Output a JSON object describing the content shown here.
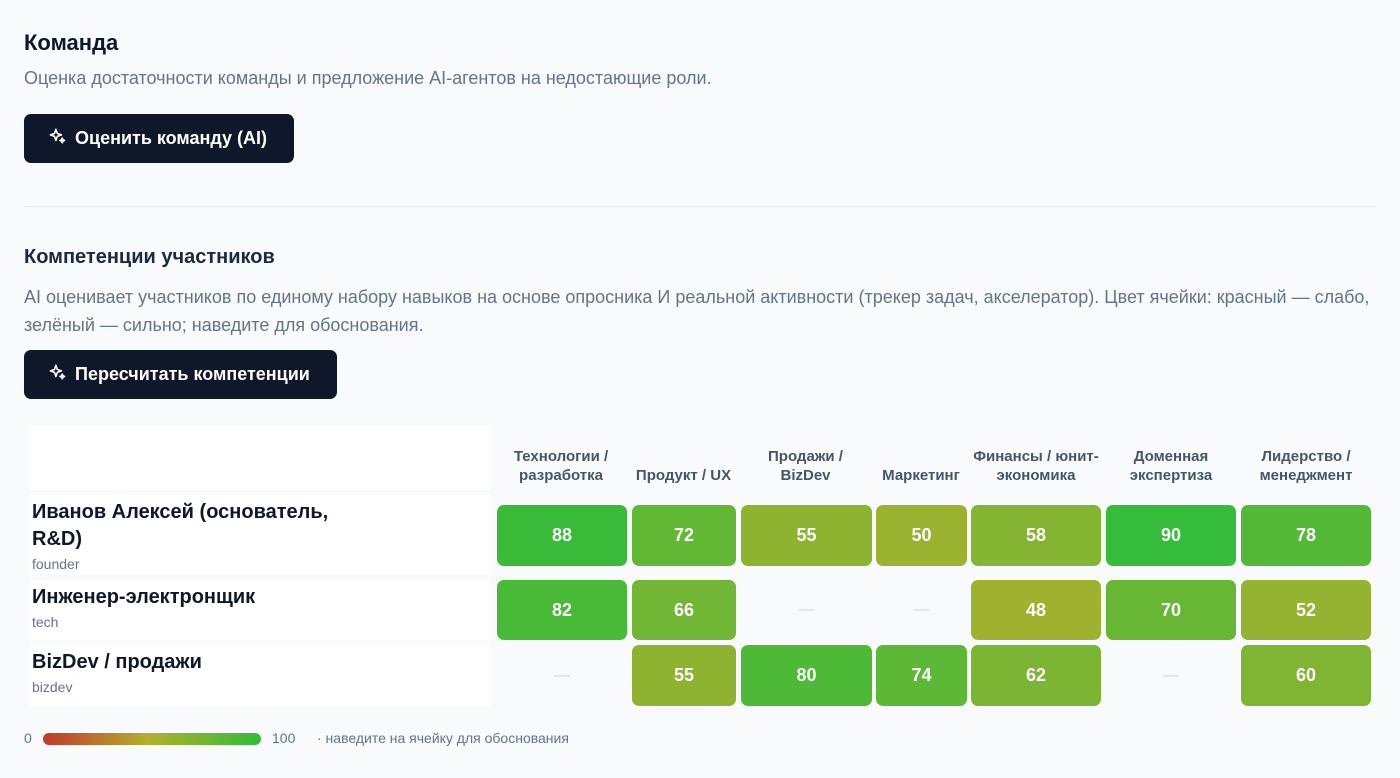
{
  "team": {
    "title": "Команда",
    "subtitle": "Оценка достаточности команды и предложение AI-агентов на недостающие роли.",
    "evaluate_button": "Оценить команду (AI)"
  },
  "competencies": {
    "title": "Компетенции участников",
    "description": "AI оценивает участников по единому набору навыков на основе опросника И реальной активности (трекер задач, акселератор). Цвет ячейки: красный — слабо, зелёный — сильно; наведите для обоснования.",
    "recalc_button": "Пересчитать компетенции"
  },
  "matrix": {
    "columns": [
      "Технологии / разработка",
      "Продукт / UX",
      "Продажи / BizDev",
      "Маркетинг",
      "Финансы / юнит-экономика",
      "Доменная экспертиза",
      "Лидерство / менеджмент"
    ],
    "rows": [
      {
        "name": "Иванов Алексей (основатель, R&D)",
        "role": "founder",
        "scores": [
          88,
          72,
          55,
          50,
          58,
          90,
          78
        ]
      },
      {
        "name": "Инженер-электронщик",
        "role": "tech",
        "scores": [
          82,
          66,
          null,
          null,
          48,
          70,
          52
        ]
      },
      {
        "name": "BizDev / продажи",
        "role": "bizdev",
        "scores": [
          null,
          55,
          80,
          74,
          62,
          null,
          60
        ]
      }
    ],
    "empty_mark": "—"
  },
  "legend": {
    "min": "0",
    "max": "100",
    "note": "· наведите на ячейку для обоснования"
  },
  "colors": {
    "button_bg": "#0f172a",
    "low": "#c0392b",
    "mid": "#b3b02e",
    "high": "#2fbc3a"
  }
}
